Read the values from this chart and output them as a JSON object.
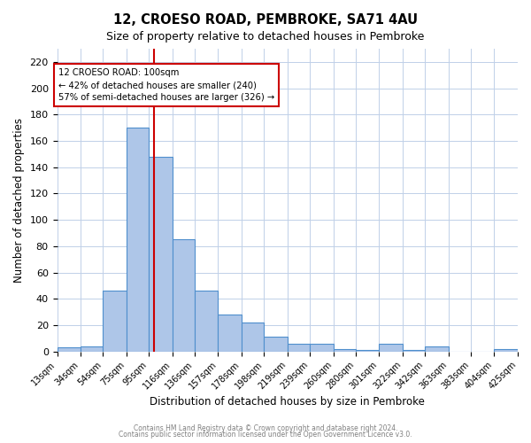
{
  "title": "12, CROESO ROAD, PEMBROKE, SA71 4AU",
  "subtitle": "Size of property relative to detached houses in Pembroke",
  "xlabel": "Distribution of detached houses by size in Pembroke",
  "ylabel": "Number of detached properties",
  "bin_labels": [
    "13sqm",
    "34sqm",
    "54sqm",
    "75sqm",
    "95sqm",
    "116sqm",
    "136sqm",
    "157sqm",
    "178sqm",
    "198sqm",
    "219sqm",
    "239sqm",
    "260sqm",
    "280sqm",
    "301sqm",
    "322sqm",
    "342sqm",
    "363sqm",
    "383sqm",
    "404sqm",
    "425sqm"
  ],
  "bin_edges": [
    13,
    34,
    54,
    75,
    95,
    116,
    136,
    157,
    178,
    198,
    219,
    239,
    260,
    280,
    301,
    322,
    342,
    363,
    383,
    404,
    425
  ],
  "bar_heights": [
    3,
    4,
    46,
    170,
    148,
    85,
    46,
    28,
    22,
    11,
    6,
    6,
    2,
    1,
    6,
    1,
    4,
    0,
    0,
    2
  ],
  "bar_color": "#aec6e8",
  "bar_edge_color": "#4f8fcd",
  "vline_x": 100,
  "vline_color": "#cc0000",
  "ylim": [
    0,
    230
  ],
  "yticks": [
    0,
    20,
    40,
    60,
    80,
    100,
    120,
    140,
    160,
    180,
    200,
    220
  ],
  "annotation_title": "12 CROESO ROAD: 100sqm",
  "annotation_line1": "← 42% of detached houses are smaller (240)",
  "annotation_line2": "57% of semi-detached houses are larger (326) →",
  "annotation_box_color": "#ffffff",
  "annotation_box_edge": "#cc0000",
  "footer1": "Contains HM Land Registry data © Crown copyright and database right 2024.",
  "footer2": "Contains public sector information licensed under the Open Government Licence v3.0.",
  "background_color": "#ffffff",
  "grid_color": "#c0d0e8"
}
